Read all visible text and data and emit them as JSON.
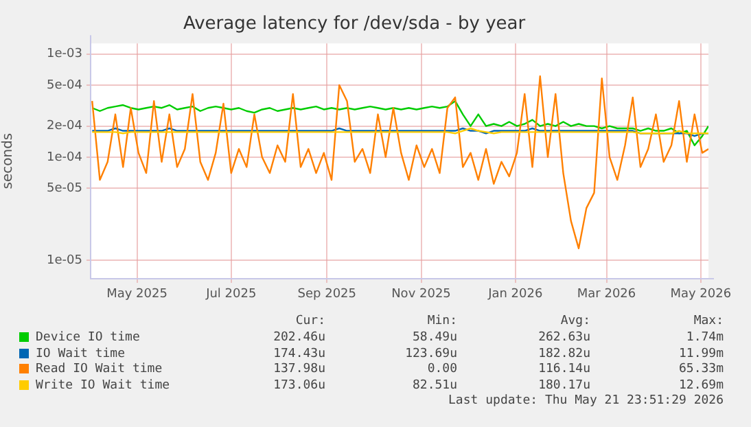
{
  "chart_data": {
    "type": "line",
    "title": "Average latency for /dev/sda - by year",
    "ylabel": "seconds",
    "log": "y",
    "xlim": [
      "2025-04-16",
      "2026-05-21"
    ],
    "xticks": [
      {
        "value": "2025-05-16",
        "label": "May 2025"
      },
      {
        "value": "2025-07-16",
        "label": "Jul 2025"
      },
      {
        "value": "2025-09-16",
        "label": "Sep 2025"
      },
      {
        "value": "2025-11-16",
        "label": "Nov 2025"
      },
      {
        "value": "2026-01-16",
        "label": "Jan 2026"
      },
      {
        "value": "2026-03-16",
        "label": "Mar 2026"
      },
      {
        "value": "2026-05-16",
        "label": "May 2026"
      }
    ],
    "ylim": [
      6.6e-06,
      0.00127
    ],
    "yticks": [
      {
        "value": 1e-05,
        "label": "1e-05"
      },
      {
        "value": 5e-05,
        "label": "5e-05"
      },
      {
        "value": 0.0001,
        "label": "1e-04"
      },
      {
        "value": 0.0002,
        "label": "2e-04"
      },
      {
        "value": 0.0005,
        "label": "5e-04"
      },
      {
        "value": 0.001,
        "label": "1e-03"
      }
    ],
    "grid": true,
    "legend": "bottom",
    "marker": "none",
    "line_style": "solid",
    "x": [
      "2025-04-17",
      "2025-04-22",
      "2025-04-27",
      "2025-05-02",
      "2025-05-07",
      "2025-05-12",
      "2025-05-17",
      "2025-05-22",
      "2025-05-27",
      "2025-06-01",
      "2025-06-06",
      "2025-06-11",
      "2025-06-16",
      "2025-06-21",
      "2025-06-26",
      "2025-07-01",
      "2025-07-06",
      "2025-07-11",
      "2025-07-16",
      "2025-07-21",
      "2025-07-26",
      "2025-07-31",
      "2025-08-05",
      "2025-08-10",
      "2025-08-15",
      "2025-08-20",
      "2025-08-25",
      "2025-08-30",
      "2025-09-04",
      "2025-09-09",
      "2025-09-14",
      "2025-09-19",
      "2025-09-24",
      "2025-09-29",
      "2025-10-04",
      "2025-10-09",
      "2025-10-14",
      "2025-10-19",
      "2025-10-24",
      "2025-10-29",
      "2025-11-03",
      "2025-11-08",
      "2025-11-13",
      "2025-11-18",
      "2025-11-23",
      "2025-11-28",
      "2025-12-03",
      "2025-12-08",
      "2025-12-13",
      "2025-12-18",
      "2025-12-23",
      "2025-12-28",
      "2026-01-02",
      "2026-01-07",
      "2026-01-12",
      "2026-01-17",
      "2026-01-22",
      "2026-01-27",
      "2026-02-01",
      "2026-02-06",
      "2026-02-11",
      "2026-02-16",
      "2026-02-21",
      "2026-02-26",
      "2026-03-03",
      "2026-03-08",
      "2026-03-13",
      "2026-03-18",
      "2026-03-23",
      "2026-03-28",
      "2026-04-02",
      "2026-04-07",
      "2026-04-12",
      "2026-04-17",
      "2026-04-22",
      "2026-04-27",
      "2026-05-02",
      "2026-05-07",
      "2026-05-12",
      "2026-05-17",
      "2026-05-21"
    ],
    "series": [
      {
        "name": "Device IO time",
        "color": "#00cc00",
        "values": [
          0.0003,
          0.00028,
          0.0003,
          0.00031,
          0.00032,
          0.0003,
          0.00029,
          0.0003,
          0.00031,
          0.0003,
          0.00032,
          0.00029,
          0.0003,
          0.00031,
          0.00028,
          0.0003,
          0.00031,
          0.0003,
          0.00029,
          0.0003,
          0.00028,
          0.00027,
          0.00029,
          0.0003,
          0.00028,
          0.00029,
          0.0003,
          0.00029,
          0.0003,
          0.00031,
          0.00029,
          0.0003,
          0.00029,
          0.0003,
          0.00029,
          0.0003,
          0.00031,
          0.0003,
          0.00029,
          0.0003,
          0.00029,
          0.0003,
          0.00029,
          0.0003,
          0.00031,
          0.0003,
          0.00031,
          0.00035,
          0.00026,
          0.0002,
          0.00026,
          0.0002,
          0.00021,
          0.0002,
          0.00022,
          0.0002,
          0.00021,
          0.00023,
          0.0002,
          0.00021,
          0.0002,
          0.00022,
          0.0002,
          0.00021,
          0.0002,
          0.0002,
          0.00019,
          0.0002,
          0.00019,
          0.00019,
          0.00019,
          0.00018,
          0.00019,
          0.00018,
          0.00018,
          0.00019,
          0.00017,
          0.00018,
          0.00013,
          0.00016,
          0.0002
        ]
      },
      {
        "name": "IO Wait time",
        "color": "#0066b3",
        "values": [
          0.00018,
          0.00018,
          0.00018,
          0.00019,
          0.00018,
          0.00018,
          0.00018,
          0.00018,
          0.00018,
          0.00018,
          0.00019,
          0.00018,
          0.00018,
          0.00018,
          0.00018,
          0.00018,
          0.00018,
          0.00018,
          0.00018,
          0.00018,
          0.00018,
          0.00018,
          0.00018,
          0.00018,
          0.00018,
          0.00018,
          0.00018,
          0.00018,
          0.00018,
          0.00018,
          0.00018,
          0.00018,
          0.00019,
          0.00018,
          0.00018,
          0.00018,
          0.00018,
          0.00018,
          0.00018,
          0.00018,
          0.00018,
          0.00018,
          0.00018,
          0.00018,
          0.00018,
          0.00018,
          0.00018,
          0.00018,
          0.00019,
          0.00018,
          0.00018,
          0.00017,
          0.00018,
          0.00018,
          0.00018,
          0.00018,
          0.00018,
          0.00019,
          0.00018,
          0.00018,
          0.00018,
          0.00018,
          0.00018,
          0.00018,
          0.00018,
          0.00018,
          0.00018,
          0.00018,
          0.00018,
          0.00018,
          0.00018,
          0.00017,
          0.00017,
          0.00017,
          0.00017,
          0.00017,
          0.00017,
          0.00017,
          0.00016,
          0.00017,
          0.00017
        ]
      },
      {
        "name": "Read IO Wait time",
        "color": "#ff8000",
        "values": [
          0.00035,
          6e-05,
          9e-05,
          0.00026,
          8e-05,
          0.0003,
          0.00011,
          7e-05,
          0.00035,
          9e-05,
          0.00026,
          8e-05,
          0.00012,
          0.00041,
          9e-05,
          6e-05,
          0.00011,
          0.00033,
          7e-05,
          0.00012,
          8e-05,
          0.00026,
          0.0001,
          7e-05,
          0.00013,
          9e-05,
          0.00041,
          8e-05,
          0.00012,
          7e-05,
          0.00011,
          6e-05,
          0.0005,
          0.00035,
          9e-05,
          0.00012,
          7e-05,
          0.00026,
          0.0001,
          0.0003,
          0.00011,
          6e-05,
          0.00013,
          8e-05,
          0.00012,
          7e-05,
          0.0003,
          0.00038,
          8e-05,
          0.00011,
          6e-05,
          0.00012,
          5.5e-05,
          9e-05,
          6.5e-05,
          0.00011,
          0.00041,
          8e-05,
          0.00061,
          0.0001,
          0.00041,
          7e-05,
          2.4e-05,
          1.3e-05,
          3.2e-05,
          4.5e-05,
          0.00058,
          0.0001,
          6e-05,
          0.00013,
          0.00038,
          8e-05,
          0.00012,
          0.00026,
          9e-05,
          0.00013,
          0.00035,
          9e-05,
          0.00026,
          0.00011,
          0.00012
        ]
      },
      {
        "name": "Write IO Wait time",
        "color": "#ffcc00",
        "values": [
          0.000175,
          0.000175,
          0.000175,
          0.000175,
          0.00017,
          0.000175,
          0.000175,
          0.000175,
          0.000175,
          0.000175,
          0.000175,
          0.000175,
          0.000175,
          0.000175,
          0.000175,
          0.000175,
          0.000175,
          0.000175,
          0.000175,
          0.000175,
          0.000175,
          0.000175,
          0.000175,
          0.000175,
          0.000175,
          0.000175,
          0.000175,
          0.000175,
          0.000175,
          0.000175,
          0.000175,
          0.000175,
          0.000175,
          0.000175,
          0.000175,
          0.000175,
          0.000175,
          0.000175,
          0.000175,
          0.000175,
          0.000175,
          0.000175,
          0.000175,
          0.000175,
          0.000175,
          0.000175,
          0.000175,
          0.00017,
          0.00018,
          0.00019,
          0.00018,
          0.000175,
          0.00017,
          0.000175,
          0.000175,
          0.000175,
          0.000175,
          0.000175,
          0.000175,
          0.000175,
          0.000175,
          0.000175,
          0.000175,
          0.000175,
          0.000175,
          0.000175,
          0.000175,
          0.000175,
          0.000175,
          0.000175,
          0.000175,
          0.00017,
          0.00017,
          0.00017,
          0.00017,
          0.00017,
          0.00018,
          0.00017,
          0.00017,
          0.00017,
          0.00017
        ]
      }
    ],
    "annotations": [
      "Cur:",
      "Min:",
      "Avg:",
      "Max:",
      "202.46u",
      "58.49u",
      "262.63u",
      "1.74m",
      "174.43u",
      "123.69u",
      "182.82u",
      "11.99m",
      "137.98u",
      "0.00",
      "116.14u",
      "65.33m",
      "173.06u",
      "82.51u",
      "180.17u",
      "12.69m",
      "Last update: Thu May 21 23:51:29 2026"
    ]
  }
}
